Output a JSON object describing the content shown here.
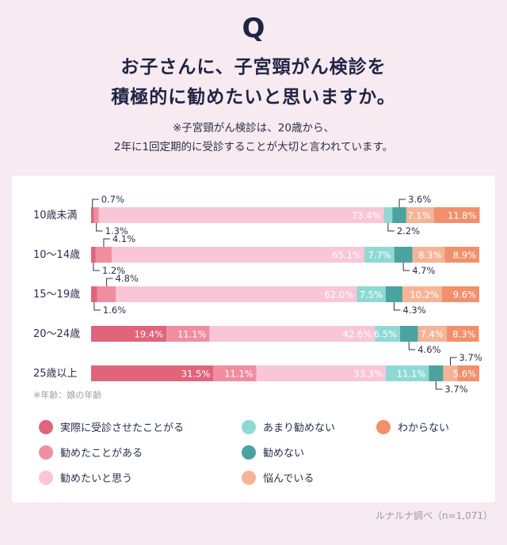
{
  "header": {
    "q": "Q",
    "title_line1": "お子さんに、子宮頸がん検診を",
    "title_line2": "積極的に勧めたいと思いますか。",
    "note_line1": "※子宮頸がん検診は、20歳から、",
    "note_line2": "2年に1回定期的に受診することが大切と言われています。"
  },
  "footnote": "※年齢：娘の年齢",
  "source": "ルナルナ調べ（n=1,071）",
  "colors": {
    "experienced": "#e0647a",
    "recommended": "#f08ea0",
    "want": "#f9c6d8",
    "not_really": "#8fd9d4",
    "not": "#4aa39f",
    "worried": "#f5b497",
    "unknown": "#f1906a"
  },
  "chart_data": {
    "type": "bar",
    "orientation": "horizontal",
    "stacked": true,
    "categories": [
      "10歳未満",
      "10〜14歳",
      "15〜19歳",
      "20〜24歳",
      "25歳以上"
    ],
    "series": [
      {
        "name": "実際に受診させたことがる",
        "values": [
          0.7,
          1.2,
          1.6,
          19.4,
          31.5
        ]
      },
      {
        "name": "勧めたことがある",
        "values": [
          1.3,
          4.1,
          4.8,
          11.1,
          11.1
        ]
      },
      {
        "name": "勧めたいと思う",
        "values": [
          73.4,
          65.1,
          62.0,
          42.6,
          33.3
        ]
      },
      {
        "name": "あまり勧めない",
        "values": [
          2.2,
          7.7,
          7.5,
          6.5,
          11.1
        ]
      },
      {
        "name": "勧めない",
        "values": [
          3.6,
          4.7,
          4.3,
          4.6,
          3.7
        ]
      },
      {
        "name": "悩んでいる",
        "values": [
          7.1,
          8.3,
          10.2,
          7.4,
          3.7
        ]
      },
      {
        "name": "わからない",
        "values": [
          11.8,
          8.9,
          9.6,
          8.3,
          5.6
        ]
      }
    ],
    "value_suffix": "%",
    "xlim": [
      0,
      100
    ],
    "legend_position": "bottom"
  }
}
